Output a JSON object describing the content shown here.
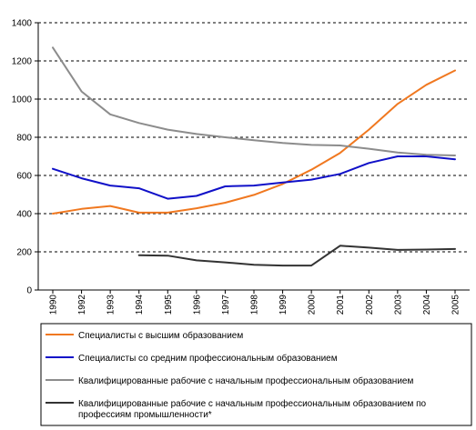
{
  "chart_data": {
    "type": "line",
    "title": "",
    "xlabel": "",
    "ylabel": "",
    "x": [
      "1990",
      "1992",
      "1993",
      "1994",
      "1995",
      "1996",
      "1997",
      "1998",
      "1999",
      "2000",
      "2001",
      "2002",
      "2003",
      "2004",
      "2005"
    ],
    "ylim": [
      0,
      1400
    ],
    "yticks": [
      "0",
      "200",
      "400",
      "600",
      "800",
      "1000",
      "1200",
      "1400"
    ],
    "grid": "horizontal-dashed",
    "legend_position": "bottom",
    "series": [
      {
        "name": "Специалисты с высшим образованием",
        "color": "#f07820",
        "values": [
          400,
          425,
          440,
          405,
          405,
          428,
          457,
          498,
          555,
          630,
          718,
          840,
          975,
          1075,
          1150
        ]
      },
      {
        "name": "Специалисты со средним профессиональным образованием",
        "color": "#1010c8",
        "values": [
          635,
          585,
          547,
          533,
          478,
          493,
          543,
          547,
          563,
          578,
          608,
          665,
          700,
          700,
          685
        ]
      },
      {
        "name": "Квалифицированные рабочие с начальным профессиональным образованием",
        "color": "#8c8c8c",
        "values": [
          1270,
          1040,
          920,
          875,
          840,
          817,
          800,
          785,
          770,
          760,
          757,
          740,
          720,
          708,
          705
        ]
      },
      {
        "name": "Квалифицированные рабочие с начальным профессиональным образованием по профессиям промышленности*",
        "color": "#333333",
        "values": [
          null,
          null,
          null,
          182,
          180,
          155,
          145,
          132,
          128,
          128,
          232,
          222,
          210,
          212,
          215
        ]
      }
    ]
  }
}
